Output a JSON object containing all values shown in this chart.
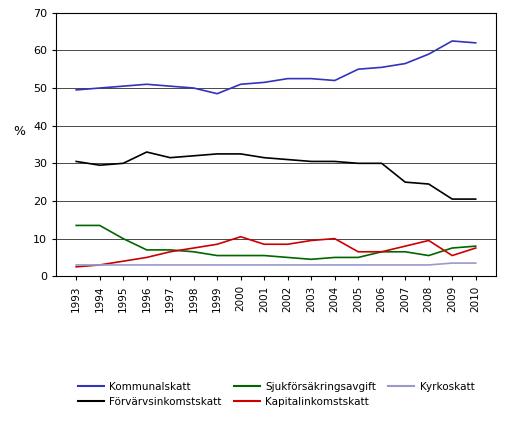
{
  "years": [
    1993,
    1994,
    1995,
    1996,
    1997,
    1998,
    1999,
    2000,
    2001,
    2002,
    2003,
    2004,
    2005,
    2006,
    2007,
    2008,
    2009,
    2010
  ],
  "kommunalskatt": [
    49.5,
    50.0,
    50.5,
    51.0,
    50.5,
    50.0,
    48.5,
    51.0,
    51.5,
    52.5,
    52.5,
    52.0,
    55.0,
    55.5,
    56.5,
    59.0,
    62.5,
    62.0
  ],
  "forvarvsinkoms": [
    30.5,
    29.5,
    30.0,
    33.0,
    31.5,
    32.0,
    32.5,
    32.5,
    31.5,
    31.0,
    30.5,
    30.5,
    30.0,
    30.0,
    25.0,
    24.5,
    20.5,
    20.5
  ],
  "sjukforsakring": [
    13.5,
    13.5,
    10.0,
    7.0,
    7.0,
    6.5,
    5.5,
    5.5,
    5.5,
    5.0,
    4.5,
    5.0,
    5.0,
    6.5,
    6.5,
    5.5,
    7.5,
    8.0
  ],
  "kapitalinkoms": [
    2.5,
    3.0,
    4.0,
    5.0,
    6.5,
    7.5,
    8.5,
    10.5,
    8.5,
    8.5,
    9.5,
    10.0,
    6.5,
    6.5,
    8.0,
    9.5,
    5.5,
    7.5
  ],
  "kyrkoskatt": [
    3.0,
    3.0,
    3.0,
    3.0,
    3.0,
    3.0,
    3.0,
    3.0,
    3.0,
    3.0,
    3.0,
    3.0,
    3.0,
    3.0,
    3.0,
    3.0,
    3.5,
    3.5
  ],
  "kommunalskatt_color": "#3333bb",
  "forvarvsinkoms_color": "#000000",
  "sjukforsakring_color": "#006600",
  "kapitalinkoms_color": "#cc0000",
  "kyrkoskatt_color": "#9999cc",
  "ylabel": "%",
  "ylim": [
    0,
    70
  ],
  "yticks": [
    0,
    10,
    20,
    30,
    40,
    50,
    60,
    70
  ],
  "legend_row1": [
    "Kommunalskatt",
    "Förvärvsinkomstskatt",
    "Sjukförsäkringsavgift"
  ],
  "legend_row2": [
    "Kapitalinkomstskatt",
    "Kyrkoskatt"
  ],
  "legend_colors_row1": [
    "#3333bb",
    "#000000",
    "#006600"
  ],
  "legend_colors_row2": [
    "#cc0000",
    "#9999cc"
  ],
  "figsize": [
    5.11,
    4.25
  ],
  "dpi": 100
}
